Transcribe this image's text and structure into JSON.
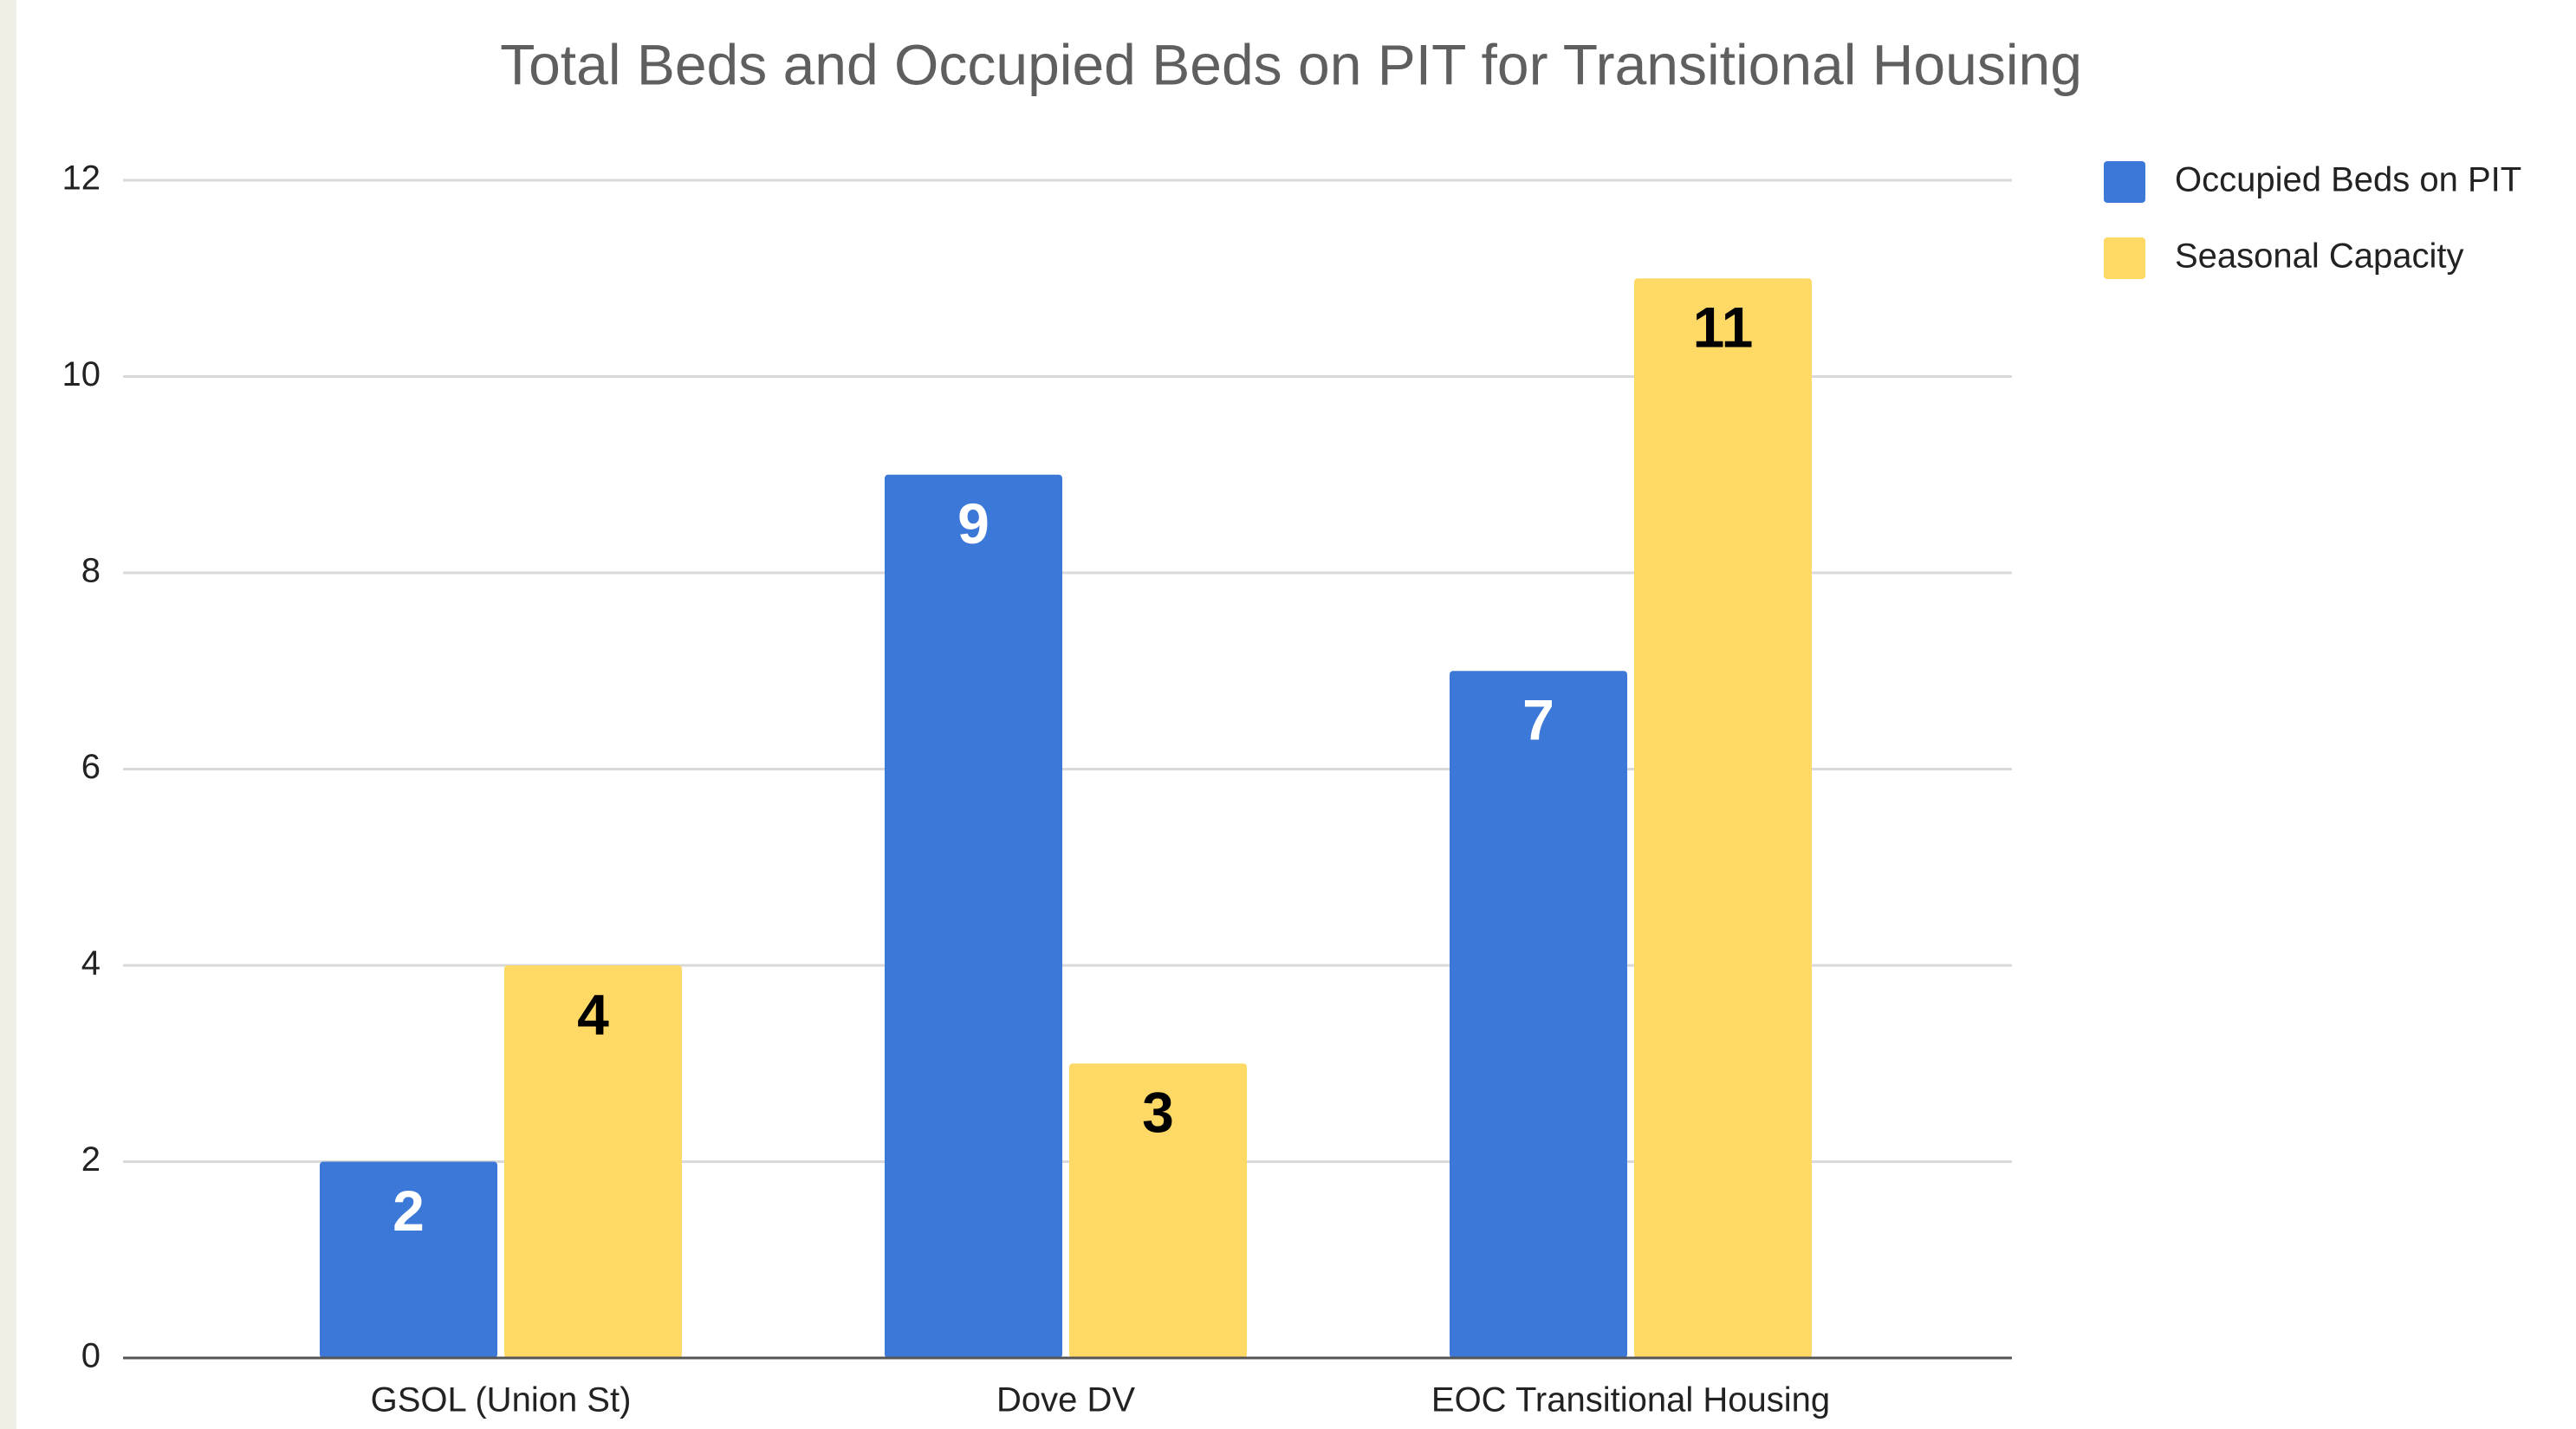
{
  "chart_data": {
    "type": "bar",
    "title": "Total Beds and Occupied Beds on PIT for Transitional Housing",
    "categories": [
      "GSOL (Union St)",
      "Dove DV",
      "EOC Transitional Housing"
    ],
    "series": [
      {
        "name": "Occupied Beds on PIT",
        "color": "#3c78d8",
        "label_color": "#ffffff",
        "values": [
          2,
          9,
          7
        ]
      },
      {
        "name": "Seasonal Capacity",
        "color": "#ffd966",
        "label_color": "#000000",
        "values": [
          4,
          3,
          11
        ]
      }
    ],
    "ylim": [
      0,
      12
    ],
    "yticks": [
      0,
      2,
      4,
      6,
      8,
      10,
      12
    ],
    "grid": true,
    "legend": "right"
  }
}
